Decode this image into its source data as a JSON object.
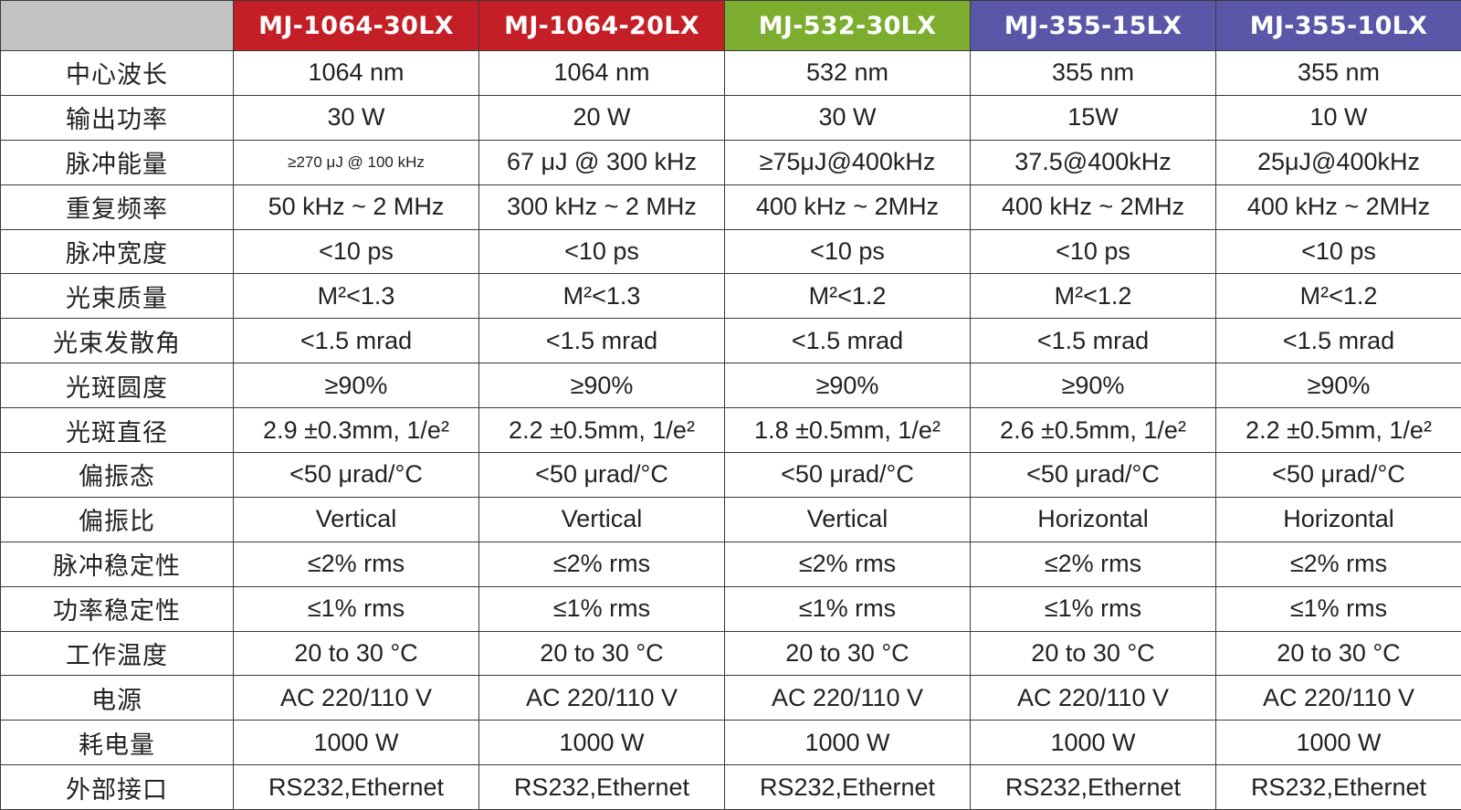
{
  "models": [
    {
      "name": "MJ-1064-30LX",
      "color": "#c41f26"
    },
    {
      "name": "MJ-1064-20LX",
      "color": "#c41f26"
    },
    {
      "name": "MJ-532-30LX",
      "color": "#7cad2e"
    },
    {
      "name": "MJ-355-15LX",
      "color": "#5b57a8"
    },
    {
      "name": "MJ-355-10LX",
      "color": "#5b57a8"
    }
  ],
  "header_corner_color": "#c2c2c2",
  "rows": [
    {
      "label": "中心波长",
      "values": [
        "1064 nm",
        "1064 nm",
        "532 nm",
        "355 nm",
        "355 nm"
      ]
    },
    {
      "label": "输出功率",
      "values": [
        "30 W",
        "20 W",
        "30 W",
        "15W",
        "10 W"
      ]
    },
    {
      "label": "脉冲能量",
      "values": [
        "≥270 μJ @ 100 kHz",
        "67 μJ @ 300 kHz",
        "≥75μJ@400kHz",
        "37.5@400kHz",
        "25μJ@400kHz"
      ]
    },
    {
      "label": "重复频率",
      "values": [
        "50 kHz ~ 2 MHz",
        "300 kHz ~ 2 MHz",
        "400 kHz ~ 2MHz",
        "400 kHz ~ 2MHz",
        "400 kHz ~ 2MHz"
      ]
    },
    {
      "label": "脉冲宽度",
      "values": [
        "<10 ps",
        "<10 ps",
        "<10 ps",
        "<10 ps",
        "<10 ps"
      ]
    },
    {
      "label": "光束质量",
      "values": [
        "M²<1.3",
        "M²<1.3",
        "M²<1.2",
        "M²<1.2",
        "M²<1.2"
      ]
    },
    {
      "label": "光束发散角",
      "values": [
        "<1.5 mrad",
        "<1.5 mrad",
        "<1.5 mrad",
        "<1.5 mrad",
        "<1.5 mrad"
      ]
    },
    {
      "label": "光斑圆度",
      "values": [
        "≥90%",
        "≥90%",
        "≥90%",
        "≥90%",
        "≥90%"
      ]
    },
    {
      "label": "光斑直径",
      "values": [
        "2.9 ±0.3mm, 1/e²",
        "2.2 ±0.5mm, 1/e²",
        "1.8 ±0.5mm, 1/e²",
        "2.6 ±0.5mm, 1/e²",
        "2.2 ±0.5mm, 1/e²"
      ]
    },
    {
      "label": "偏振态",
      "values": [
        "<50 μrad/°C",
        "<50 μrad/°C",
        "<50 μrad/°C",
        "<50 μrad/°C",
        "<50 μrad/°C"
      ]
    },
    {
      "label": "偏振比",
      "values": [
        "Vertical",
        "Vertical",
        "Vertical",
        "Horizontal",
        "Horizontal"
      ]
    },
    {
      "label": "脉冲稳定性",
      "values": [
        "≤2% rms",
        "≤2% rms",
        "≤2% rms",
        "≤2% rms",
        "≤2% rms"
      ]
    },
    {
      "label": "功率稳定性",
      "values": [
        "≤1% rms",
        "≤1% rms",
        "≤1% rms",
        "≤1% rms",
        "≤1% rms"
      ]
    },
    {
      "label": "工作温度",
      "values": [
        "20 to 30 °C",
        "20 to 30 °C",
        "20 to 30 °C",
        "20 to 30 °C",
        "20 to 30 °C"
      ]
    },
    {
      "label": "电源",
      "values": [
        "AC 220/110 V",
        "AC 220/110 V",
        "AC 220/110 V",
        "AC 220/110 V",
        "AC 220/110 V"
      ]
    },
    {
      "label": "耗电量",
      "values": [
        "1000 W",
        "1000 W",
        "1000 W",
        "1000 W",
        "1000 W"
      ]
    },
    {
      "label": "外部接口",
      "values": [
        "RS232,Ethernet",
        "RS232,Ethernet",
        "RS232,Ethernet",
        "RS232,Ethernet",
        "RS232,Ethernet"
      ]
    }
  ]
}
